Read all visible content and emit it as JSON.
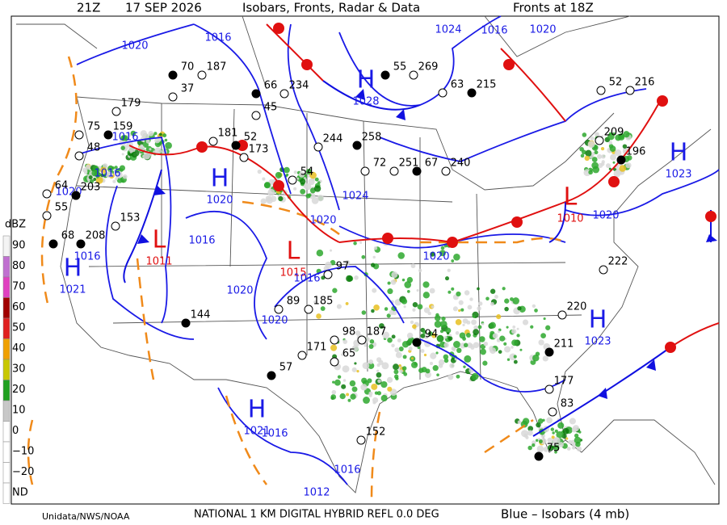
{
  "header": {
    "time": "21Z",
    "date": "17 SEP 2026",
    "title": "Isobars, Fronts, Radar & Data",
    "fronts_time": "Fronts at 18Z"
  },
  "footer": {
    "credit": "Unidata/NWS/NOAA",
    "product": "NATIONAL 1 KM DIGITAL HYBRID REFL 0.0 DEG",
    "isobar_note": "Blue – Isobars (4 mb)"
  },
  "legend": {
    "title": "dBZ",
    "labels": [
      "90",
      "80",
      "70",
      "60",
      "50",
      "40",
      "30",
      "20",
      "10",
      "0",
      "−10",
      "−20",
      "ND"
    ]
  },
  "pressure_centers": [
    {
      "symbol": "H",
      "pressure": "1021"
    },
    {
      "symbol": "H",
      "pressure": "1020"
    },
    {
      "symbol": "L",
      "pressure": "1011"
    },
    {
      "symbol": "L",
      "pressure": "1015"
    },
    {
      "symbol": "H",
      "pressure": "1028"
    },
    {
      "symbol": "L",
      "pressure": "1010"
    },
    {
      "symbol": "H",
      "pressure": "1023"
    },
    {
      "symbol": "H",
      "pressure": "1023"
    },
    {
      "symbol": "H",
      "pressure": "1021"
    }
  ],
  "isobar_labels": [
    "1020",
    "1016",
    "1024",
    "1016",
    "1020",
    "1016",
    "1016",
    "1020",
    "1024",
    "1020",
    "1016",
    "1016",
    "1020",
    "1020",
    "1020",
    "1016",
    "1016",
    "1012",
    "1020",
    "1016"
  ],
  "stations": [
    "70",
    "187",
    "37",
    "66",
    "234",
    "45",
    "55",
    "269",
    "63",
    "215",
    "179",
    "75",
    "159",
    "48",
    "181",
    "52",
    "173",
    "244",
    "258",
    "72",
    "251",
    "67",
    "240",
    "64",
    "203",
    "55",
    "153",
    "208",
    "54",
    "97",
    "68",
    "89",
    "185",
    "144",
    "98",
    "187",
    "94",
    "65",
    "171",
    "57",
    "222",
    "220",
    "211",
    "177",
    "83",
    "75",
    "152",
    "209",
    "196",
    "52",
    "216"
  ]
}
